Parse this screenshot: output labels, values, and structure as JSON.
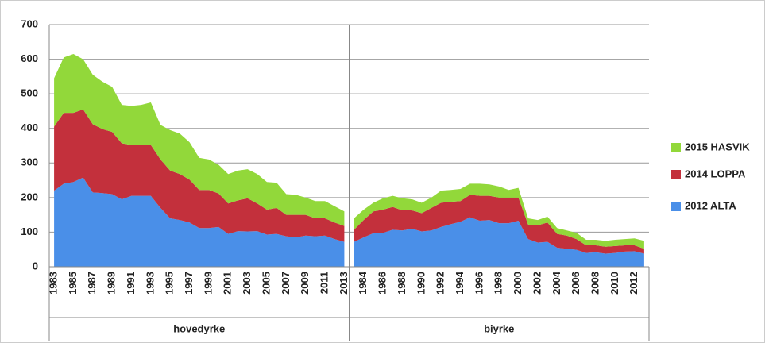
{
  "chart_data": {
    "type": "stacked-area",
    "groups": [
      "hovedyrke",
      "biyrke"
    ],
    "categories": [
      "1983",
      null,
      "1985",
      null,
      "1987",
      null,
      "1989",
      null,
      "1991",
      null,
      "1993",
      null,
      "1995",
      null,
      "1997",
      null,
      "1999",
      null,
      "2001",
      null,
      "2003",
      null,
      "2005",
      null,
      "2007",
      null,
      "2009",
      null,
      "2011",
      null,
      "2013",
      null,
      "1984",
      null,
      "1986",
      null,
      "1988",
      null,
      "1990",
      null,
      "1992",
      null,
      "1994",
      null,
      "1996",
      null,
      "1998",
      null,
      "2000",
      null,
      "2002",
      null,
      "2004",
      null,
      "2006",
      null,
      "2008",
      null,
      "2010",
      null,
      "2012",
      null
    ],
    "series": [
      {
        "name": "2012 ALTA",
        "color": "#4a8fe8",
        "values": [
          220,
          240,
          245,
          258,
          215,
          213,
          210,
          195,
          205,
          205,
          205,
          170,
          140,
          135,
          128,
          112,
          112,
          115,
          95,
          103,
          102,
          103,
          93,
          95,
          88,
          85,
          90,
          88,
          90,
          80,
          72,
          72,
          85,
          97,
          98,
          107,
          105,
          110,
          102,
          105,
          115,
          123,
          130,
          143,
          133,
          135,
          126,
          126,
          133,
          80,
          70,
          72,
          55,
          52,
          49,
          40,
          42,
          38,
          40,
          44,
          45,
          38
        ]
      },
      {
        "name": "2014 LOPPA",
        "color": "#c3303c",
        "values": [
          185,
          205,
          200,
          197,
          197,
          185,
          180,
          162,
          147,
          147,
          147,
          140,
          138,
          133,
          124,
          110,
          110,
          97,
          88,
          89,
          96,
          80,
          72,
          75,
          62,
          65,
          60,
          52,
          50,
          48,
          46,
          35,
          50,
          63,
          67,
          66,
          58,
          53,
          53,
          65,
          70,
          65,
          60,
          65,
          72,
          70,
          74,
          74,
          67,
          42,
          50,
          56,
          40,
          38,
          31,
          22,
          20,
          20,
          20,
          18,
          17,
          14
        ]
      },
      {
        "name": "2015 HASVIK",
        "color": "#92d83a",
        "values": [
          140,
          160,
          170,
          145,
          143,
          137,
          130,
          111,
          113,
          116,
          123,
          100,
          117,
          117,
          108,
          93,
          88,
          83,
          85,
          86,
          84,
          85,
          80,
          73,
          60,
          58,
          50,
          50,
          50,
          47,
          42,
          33,
          30,
          25,
          33,
          32,
          35,
          32,
          30,
          30,
          35,
          34,
          35,
          32,
          35,
          33,
          32,
          22,
          28,
          18,
          15,
          17,
          17,
          15,
          18,
          16,
          16,
          17,
          18,
          18,
          20,
          23
        ]
      }
    ],
    "ylim": [
      0,
      700
    ],
    "yticks": [
      0,
      100,
      200,
      300,
      400,
      500,
      600,
      700
    ],
    "grid": true
  }
}
